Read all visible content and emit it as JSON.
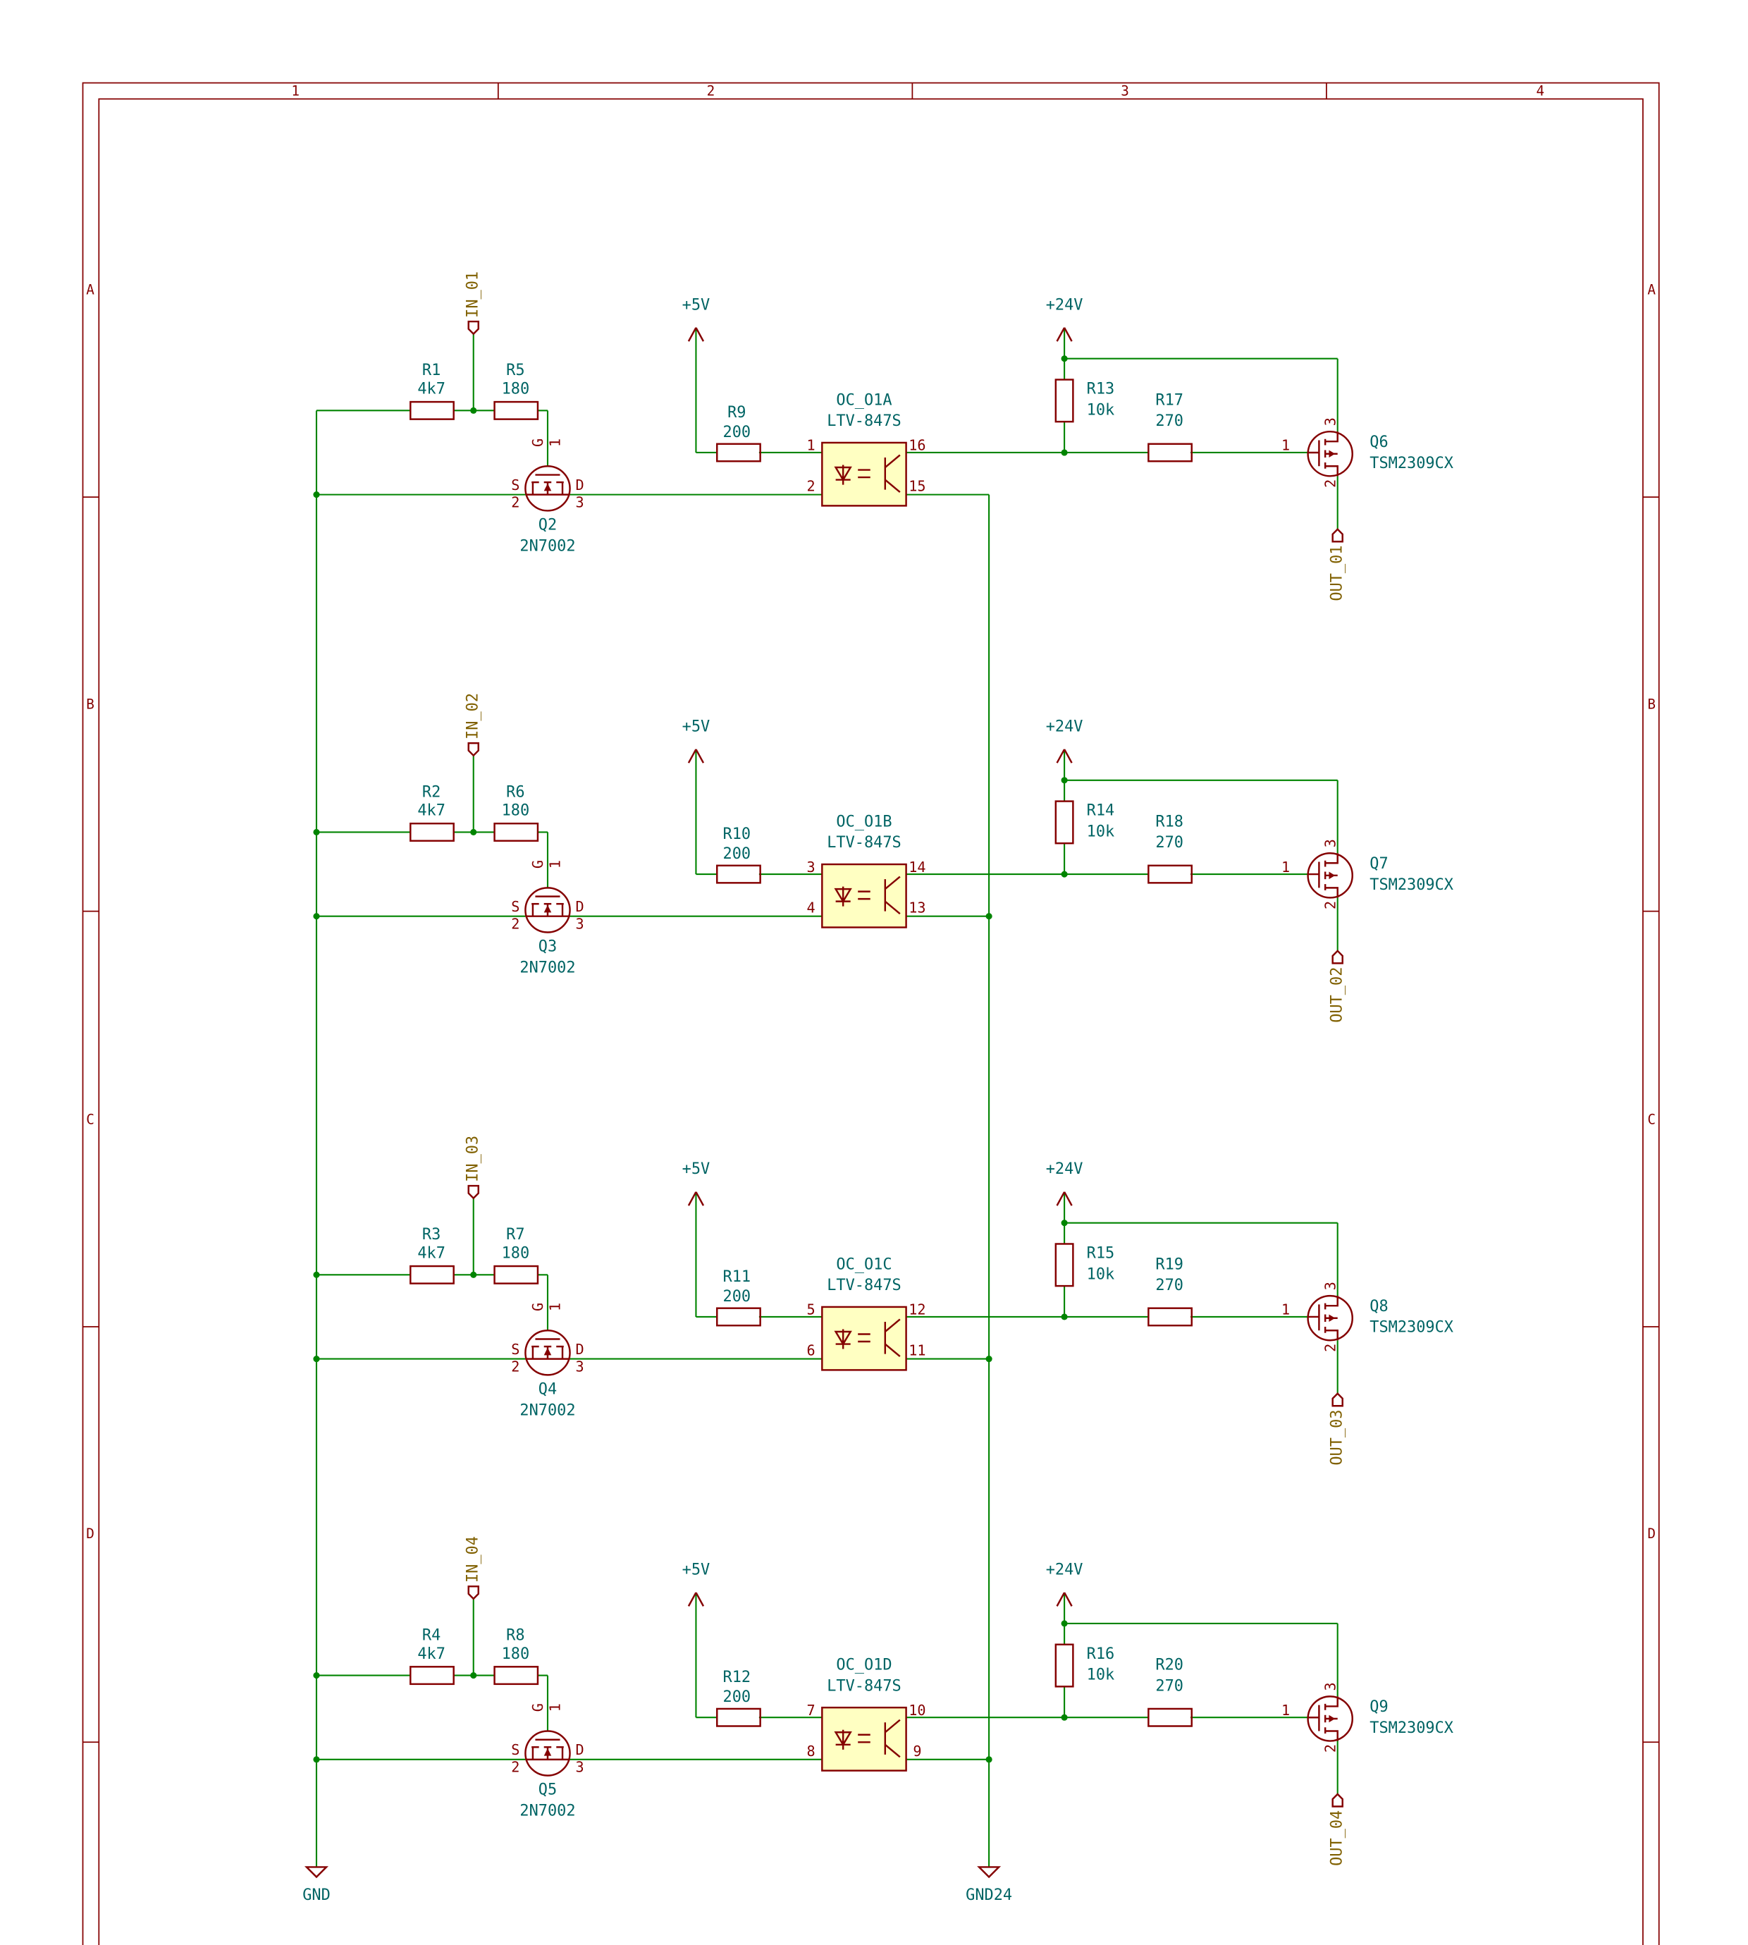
{
  "frame": {
    "columns": [
      "1",
      "2",
      "3",
      "4"
    ],
    "rows": [
      "A",
      "B",
      "C",
      "D"
    ]
  },
  "input_fet_pins": {
    "gate_name": "G",
    "gate_num": "1",
    "source_name": "S",
    "source_num": "2",
    "drain_name": "D",
    "drain_num": "3"
  },
  "output_fet_pins": {
    "gate": "1",
    "source": "3",
    "drain": "2"
  },
  "ground_labels": {
    "logic": "GND",
    "power": "GND24"
  },
  "channels": [
    {
      "input": "IN_01",
      "r_in": {
        "ref": "R1",
        "value": "4k7"
      },
      "r_gate": {
        "ref": "R5",
        "value": "180"
      },
      "q_in": {
        "ref": "Q2",
        "value": "2N7002"
      },
      "logic_supply": "+5V",
      "r_led": {
        "ref": "R9",
        "value": "200"
      },
      "opto": {
        "ref": "OC_O1A",
        "value": "LTV-847S",
        "pins": [
          "1",
          "2",
          "16",
          "15"
        ]
      },
      "power_supply": "+24V",
      "r_pull": {
        "ref": "R13",
        "value": "10k"
      },
      "r_series": {
        "ref": "R17",
        "value": "270"
      },
      "q_out": {
        "ref": "Q6",
        "value": "TSM2309CX"
      },
      "output": "OUT_01"
    },
    {
      "input": "IN_02",
      "r_in": {
        "ref": "R2",
        "value": "4k7"
      },
      "r_gate": {
        "ref": "R6",
        "value": "180"
      },
      "q_in": {
        "ref": "Q3",
        "value": "2N7002"
      },
      "logic_supply": "+5V",
      "r_led": {
        "ref": "R10",
        "value": "200"
      },
      "opto": {
        "ref": "OC_O1B",
        "value": "LTV-847S",
        "pins": [
          "3",
          "4",
          "14",
          "13"
        ]
      },
      "power_supply": "+24V",
      "r_pull": {
        "ref": "R14",
        "value": "10k"
      },
      "r_series": {
        "ref": "R18",
        "value": "270"
      },
      "q_out": {
        "ref": "Q7",
        "value": "TSM2309CX"
      },
      "output": "OUT_02"
    },
    {
      "input": "IN_03",
      "r_in": {
        "ref": "R3",
        "value": "4k7"
      },
      "r_gate": {
        "ref": "R7",
        "value": "180"
      },
      "q_in": {
        "ref": "Q4",
        "value": "2N7002"
      },
      "logic_supply": "+5V",
      "r_led": {
        "ref": "R11",
        "value": "200"
      },
      "opto": {
        "ref": "OC_O1C",
        "value": "LTV-847S",
        "pins": [
          "5",
          "6",
          "12",
          "11"
        ]
      },
      "power_supply": "+24V",
      "r_pull": {
        "ref": "R15",
        "value": "10k"
      },
      "r_series": {
        "ref": "R19",
        "value": "270"
      },
      "q_out": {
        "ref": "Q8",
        "value": "TSM2309CX"
      },
      "output": "OUT_03"
    },
    {
      "input": "IN_04",
      "r_in": {
        "ref": "R4",
        "value": "4k7"
      },
      "r_gate": {
        "ref": "R8",
        "value": "180"
      },
      "q_in": {
        "ref": "Q5",
        "value": "2N7002"
      },
      "logic_supply": "+5V",
      "r_led": {
        "ref": "R12",
        "value": "200"
      },
      "opto": {
        "ref": "OC_O1D",
        "value": "LTV-847S",
        "pins": [
          "7",
          "8",
          "10",
          "9"
        ]
      },
      "power_supply": "+24V",
      "r_pull": {
        "ref": "R16",
        "value": "10k"
      },
      "r_series": {
        "ref": "R20",
        "value": "270"
      },
      "q_out": {
        "ref": "Q9",
        "value": "TSM2309CX"
      },
      "output": "OUT_04"
    }
  ]
}
